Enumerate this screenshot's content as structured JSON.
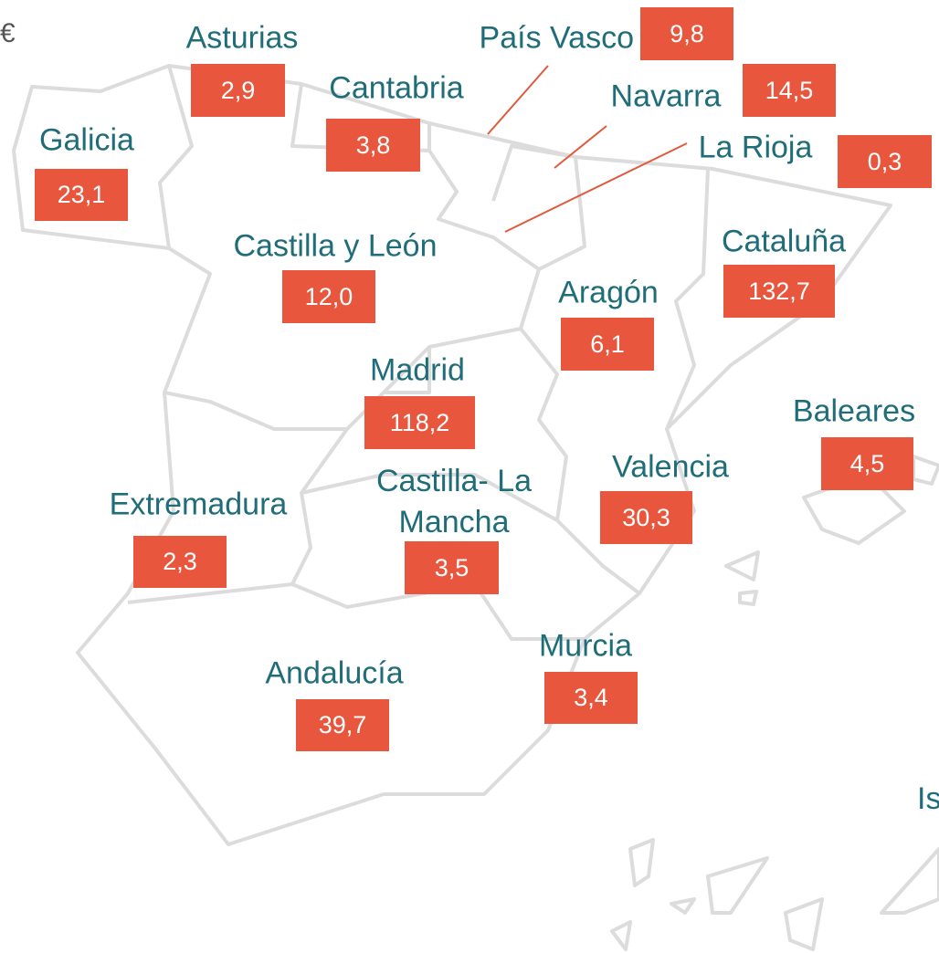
{
  "currency": "€",
  "cropped_label": "Is",
  "regions": [
    {
      "name": "Asturias",
      "value": "2,9"
    },
    {
      "name": "País Vasco",
      "value": "9,8"
    },
    {
      "name": "Cantabria",
      "value": "3,8"
    },
    {
      "name": "Navarra",
      "value": "14,5"
    },
    {
      "name": "Galicia",
      "value": "23,1"
    },
    {
      "name": "La Rioja",
      "value": "0,3"
    },
    {
      "name": "Castilla y León",
      "value": "12,0"
    },
    {
      "name": "Cataluña",
      "value": "132,7"
    },
    {
      "name": "Aragón",
      "value": "6,1"
    },
    {
      "name": "Madrid",
      "value": "118,2"
    },
    {
      "name": "Baleares",
      "value": "4,5"
    },
    {
      "name": "Valencia",
      "value": "30,3"
    },
    {
      "name": "Castilla- La Mancha",
      "value": "3,5"
    },
    {
      "name": "Extremadura",
      "value": "2,3"
    },
    {
      "name": "Murcia",
      "value": "3,4"
    },
    {
      "name": "Andalucía",
      "value": "39,7"
    }
  ]
}
